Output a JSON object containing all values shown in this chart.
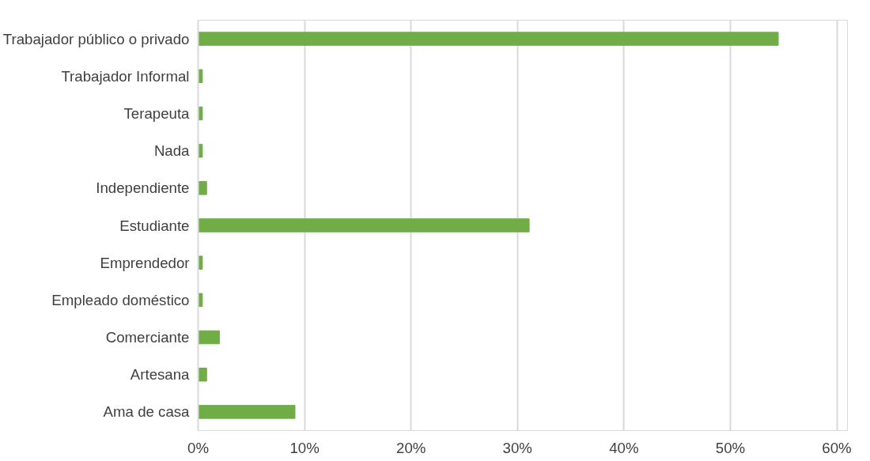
{
  "chart_data": {
    "type": "bar",
    "orientation": "horizontal",
    "categories": [
      "Trabajador público o privado",
      "Trabajador Informal",
      "Terapeuta",
      "Nada",
      "Independiente",
      "Estudiante",
      "Emprendedor",
      "Empleado doméstico",
      "Comerciante",
      "Artesana",
      "Ama de casa"
    ],
    "values": [
      54.5,
      0.4,
      0.4,
      0.4,
      0.8,
      31.1,
      0.4,
      0.4,
      2.0,
      0.8,
      9.1
    ],
    "color": "#70ad47",
    "xlim": [
      0,
      61
    ],
    "xticks": [
      {
        "value": 0,
        "label": "0%"
      },
      {
        "value": 10,
        "label": "10%"
      },
      {
        "value": 20,
        "label": "20%"
      },
      {
        "value": 30,
        "label": "30%"
      },
      {
        "value": 40,
        "label": "40%"
      },
      {
        "value": 50,
        "label": "50%"
      },
      {
        "value": 60,
        "label": "60%"
      }
    ],
    "grid": "x"
  }
}
